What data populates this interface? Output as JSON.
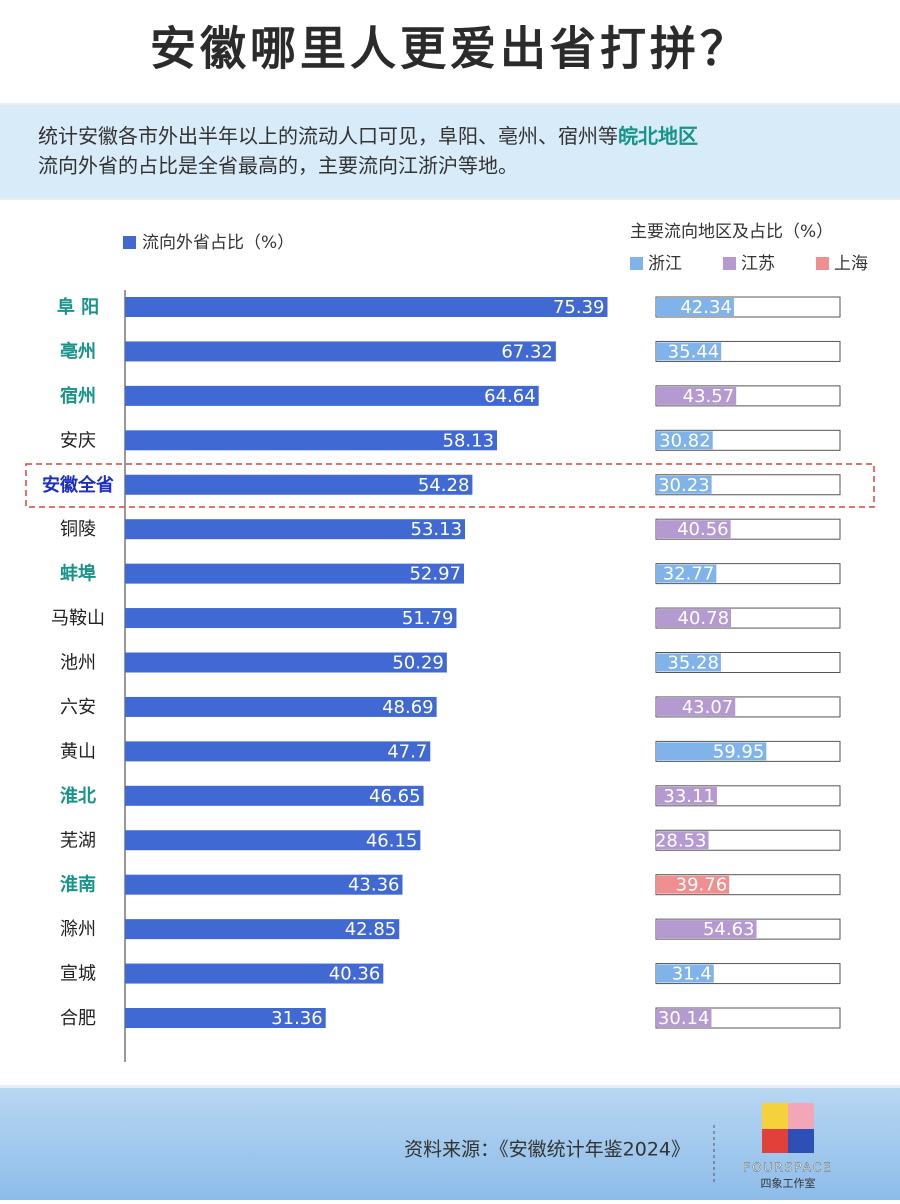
{
  "header": {
    "title": "安徽哪里人更爱出省打拼？",
    "subtitle": [
      "统计安徽各市外出半年以上的流动人口可见，阜阳、亳州、宿州等",
      "皖北地区",
      "流向外省的占比是全省最高的，主要流向江浙沪等地。"
    ]
  },
  "chart_data": [
    {
      "type": "bar",
      "orientation": "horizontal",
      "categories": [
        "阜 阳",
        "亳州",
        "宿州",
        "安庆",
        "安徽全省",
        "铜陵",
        "蚌埠",
        "马鞍山",
        "池州",
        "六安",
        "黄山",
        "淮北",
        "芜湖",
        "淮南",
        "滁州",
        "宣城",
        "合肥"
      ],
      "category_colors": [
        "#17948a",
        "#17948a",
        "#17948a",
        "#222222",
        "#1b2fc4",
        "#222222",
        "#17948a",
        "#222222",
        "#222222",
        "#222222",
        "#222222",
        "#17948a",
        "#222222",
        "#17948a",
        "#222222",
        "#222222",
        "#222222"
      ],
      "series": [
        {
          "name": "流向外省占比（%）",
          "color": "#4169d4",
          "values": [
            75.39,
            67.32,
            64.64,
            58.13,
            54.28,
            53.13,
            52.97,
            51.79,
            50.29,
            48.69,
            47.7,
            46.65,
            46.15,
            43.36,
            42.85,
            40.36,
            31.36
          ]
        }
      ],
      "xlim": [
        0,
        80
      ]
    },
    {
      "type": "progress",
      "title": "主要流向地区及占比（%）",
      "series": [
        {
          "name": "浙江",
          "color": "#7fb3ea",
          "values": [
            42.34,
            35.44,
            null,
            30.82,
            30.23,
            null,
            32.77,
            null,
            35.28,
            null,
            59.95,
            null,
            null,
            null,
            null,
            31.4,
            null
          ]
        },
        {
          "name": "江苏",
          "color": "#b59ad2",
          "values": [
            null,
            null,
            43.57,
            null,
            null,
            40.56,
            null,
            40.78,
            null,
            43.07,
            null,
            33.11,
            28.53,
            null,
            54.63,
            null,
            30.14
          ]
        },
        {
          "name": "上海",
          "color": "#f08f8f",
          "values": [
            null,
            null,
            null,
            null,
            null,
            null,
            null,
            null,
            null,
            null,
            null,
            null,
            null,
            39.76,
            null,
            null,
            null
          ]
        }
      ],
      "xlim": [
        0,
        100
      ]
    }
  ],
  "footer": {
    "source": "资料来源：《安徽统计年鉴2024》",
    "brand": "FOURSPACE",
    "brand_cn": "四象工作室"
  }
}
